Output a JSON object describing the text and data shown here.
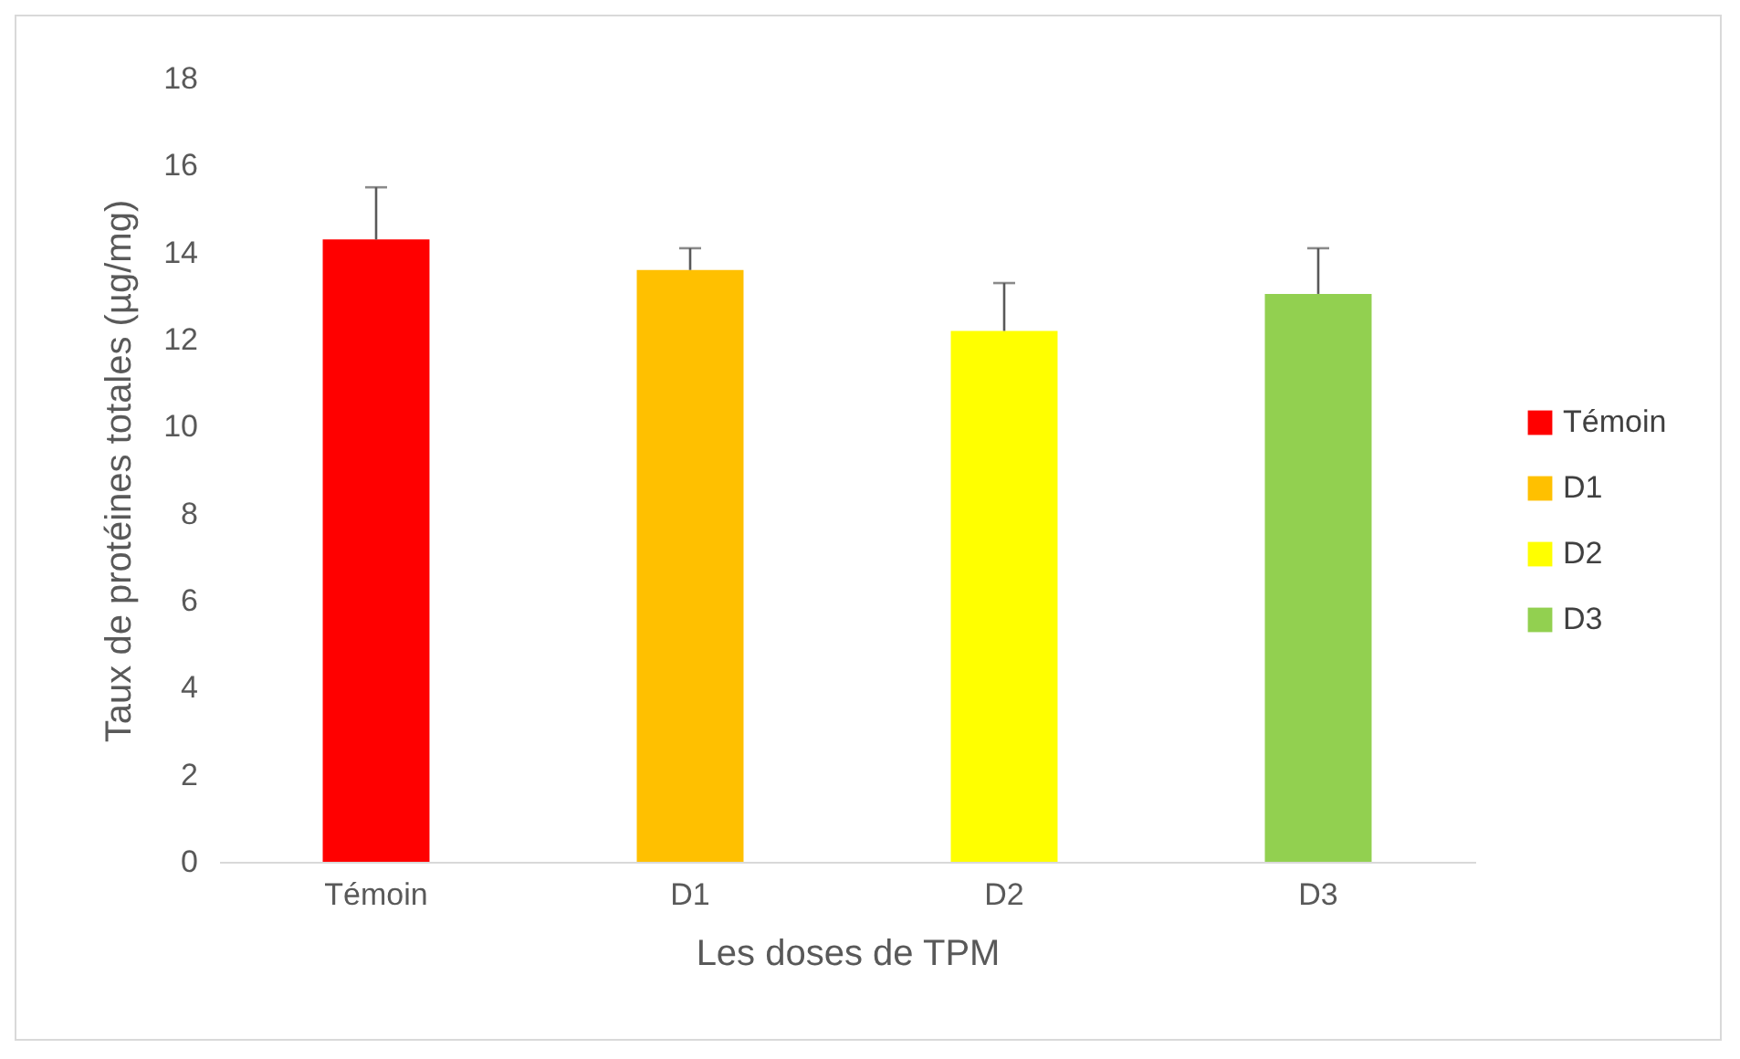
{
  "chart_data": {
    "type": "bar",
    "xlabel": "Les doses de TPM",
    "ylabel": "Taux de protéines totales (µg/mg)",
    "categories": [
      "Témoin",
      "D1",
      "D2",
      "D3"
    ],
    "series": [
      {
        "name": "Témoin",
        "color": "#ff0000",
        "values": [
          14.3,
          null,
          null,
          null
        ],
        "errors": [
          [
            14.3,
            15.5
          ],
          null,
          null,
          null
        ]
      },
      {
        "name": "D1",
        "color": "#ffc000",
        "values": [
          null,
          13.6,
          null,
          null
        ],
        "errors": [
          null,
          [
            13.6,
            14.1
          ],
          null,
          null
        ]
      },
      {
        "name": "D2",
        "color": "#ffff00",
        "values": [
          null,
          null,
          12.2,
          null
        ],
        "errors": [
          null,
          null,
          [
            12.2,
            13.3
          ],
          null
        ]
      },
      {
        "name": "D3",
        "color": "#92d050",
        "values": [
          null,
          null,
          null,
          13.05
        ],
        "errors": [
          null,
          null,
          null,
          [
            13.05,
            14.1
          ]
        ]
      }
    ],
    "ylim": [
      0,
      18
    ],
    "yticks": [
      0,
      2,
      4,
      6,
      8,
      10,
      12,
      14,
      16,
      18
    ],
    "grid": false,
    "legend": "right"
  }
}
